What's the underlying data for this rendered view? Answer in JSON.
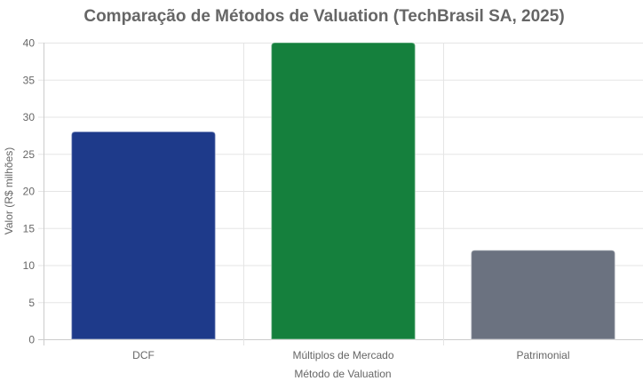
{
  "chart_data": {
    "type": "bar",
    "title": "Comparação de Métodos de Valuation (TechBrasil SA, 2025)",
    "xlabel": "Método de Valuation",
    "ylabel": "Valor (R$ milhões)",
    "categories": [
      "DCF",
      "Múltiplos de Mercado",
      "Patrimonial"
    ],
    "values": [
      28,
      40,
      12
    ],
    "colors": [
      "#1e3a8a",
      "#15803d",
      "#6b7280"
    ],
    "ylim": [
      0,
      40
    ],
    "yticks": [
      0,
      5,
      10,
      15,
      20,
      25,
      30,
      35,
      40
    ],
    "grid": true,
    "legend": "none"
  }
}
